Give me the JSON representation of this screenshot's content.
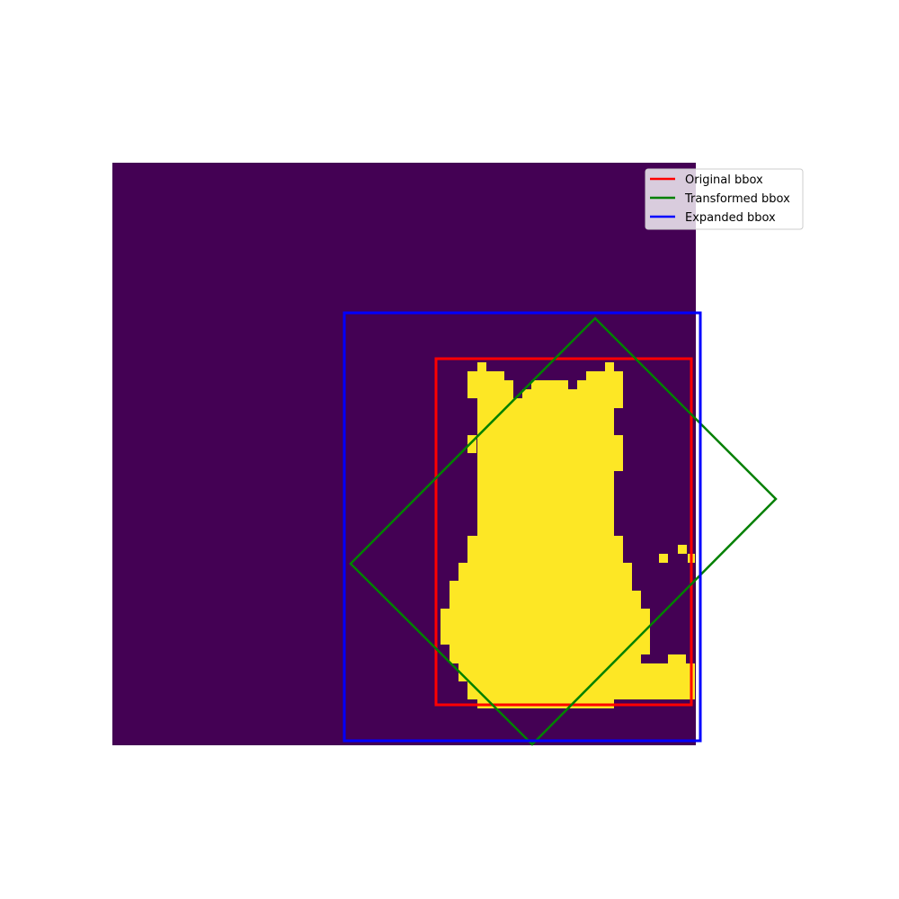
{
  "colors": {
    "background": "#440154",
    "mask": "#fde725",
    "original_bbox": "#ff0000",
    "transformed_bbox": "#008000",
    "expanded_bbox": "#0000ff"
  },
  "legend": {
    "placement": "top-right",
    "items": [
      {
        "key": "original_bbox",
        "label": "Original bbox"
      },
      {
        "key": "transformed_bbox",
        "label": "Transformed bbox"
      },
      {
        "key": "expanded_bbox",
        "label": "Expanded bbox"
      }
    ]
  }
}
